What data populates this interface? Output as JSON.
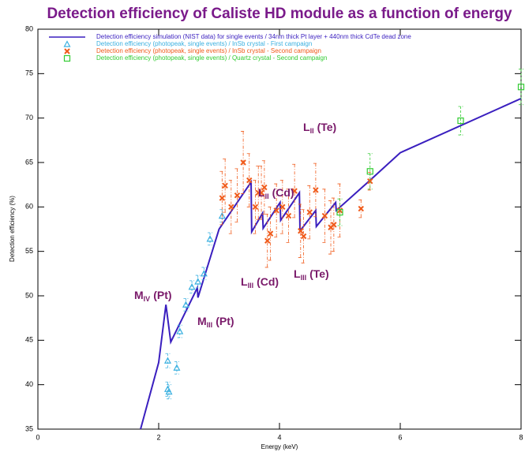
{
  "chart_data": {
    "type": "line",
    "title": "Detection efficiency of Caliste HD module as a function of energy",
    "x_label": "Energy (keV)",
    "y_label": "Detection efficiency (%)",
    "xlim": [
      0,
      8
    ],
    "xticks": [
      0,
      2,
      4,
      6,
      8
    ],
    "ylim": [
      35,
      80
    ],
    "yticks": [
      35,
      40,
      45,
      50,
      55,
      60,
      65,
      70,
      75,
      80
    ],
    "series": [
      {
        "name": "Detection efficiency simulation (NIST data) for single events / 34nm thick Pt layer + 440nm thick CdTe dead zone",
        "type": "line",
        "color": "#3a1fbf",
        "x": [
          1.7,
          2.0,
          2.12,
          2.2,
          2.64,
          2.65,
          3.0,
          3.05,
          3.53,
          3.54,
          3.72,
          3.73,
          4.01,
          4.02,
          4.33,
          4.34,
          4.6,
          4.61,
          4.93,
          4.94,
          5.5,
          6.0,
          8.0
        ],
        "values": [
          35,
          42.5,
          49.0,
          44.8,
          50.9,
          49.8,
          57.5,
          58.0,
          62.8,
          57.2,
          59.3,
          57.6,
          60.5,
          58.5,
          61.6,
          57.3,
          59.6,
          57.8,
          60.5,
          59.6,
          63.0,
          66.1,
          72.2
        ]
      },
      {
        "name": "Detection efficiency (photopeak, single events) / InSb crystal - First campaign",
        "type": "triangle",
        "color": "#3ab0e0",
        "x": [
          2.15,
          2.15,
          2.17,
          2.3,
          2.35,
          2.45,
          2.55,
          2.65,
          2.75,
          2.85,
          3.05
        ],
        "values": [
          42.7,
          39.5,
          39.2,
          41.9,
          46.0,
          49.0,
          51.0,
          51.6,
          52.5,
          56.4,
          59.0
        ],
        "errors": [
          0.8,
          0.8,
          0.8,
          0.7,
          0.7,
          0.7,
          0.7,
          0.7,
          0.7,
          0.7,
          0.7
        ]
      },
      {
        "name": "Detection efficiency (photopeak, single events) / InSb crystal - Second campaign",
        "type": "cross",
        "color": "#f05a1a",
        "x": [
          3.05,
          3.1,
          3.2,
          3.3,
          3.4,
          3.5,
          3.6,
          3.65,
          3.7,
          3.75,
          3.8,
          3.85,
          3.95,
          4.05,
          4.15,
          4.25,
          4.35,
          4.4,
          4.5,
          4.6,
          4.75,
          4.85,
          4.9,
          5.0,
          5.35,
          5.5
        ],
        "values": [
          61.0,
          62.4,
          60.0,
          61.3,
          65.0,
          63.0,
          60.0,
          61.6,
          61.6,
          62.2,
          56.2,
          57.0,
          59.6,
          60.0,
          59.0,
          61.8,
          57.3,
          56.7,
          59.4,
          61.9,
          59.0,
          57.7,
          58.0,
          59.6,
          59.8,
          62.9
        ],
        "errors": [
          3,
          3,
          3,
          3,
          3.5,
          3,
          3,
          3,
          3,
          3,
          3,
          3,
          3,
          3,
          3,
          3,
          3,
          3,
          3,
          3,
          3,
          3,
          3,
          3,
          1,
          1
        ]
      },
      {
        "name": "Detection efficiency (photopeak, single events) / Quartz crystal - Second campaign",
        "type": "square",
        "color": "#33cc33",
        "x": [
          5.0,
          5.5,
          7.0,
          8.0
        ],
        "values": [
          59.4,
          64.0,
          69.7,
          73.5
        ],
        "errors": [
          1.5,
          2.0,
          1.6,
          2.0
        ]
      }
    ],
    "annotations": [
      {
        "main": "M",
        "sub": "IV",
        "suffix": "(Pt)"
      },
      {
        "main": "M",
        "sub": "III",
        "suffix": "(Pt)"
      },
      {
        "main": "L",
        "sub": "II",
        "suffix": "(Cd)"
      },
      {
        "main": "L",
        "sub": "III",
        "suffix": "(Cd)"
      },
      {
        "main": "L",
        "sub": "II",
        "suffix": "(Te)"
      },
      {
        "main": "L",
        "sub": "III",
        "suffix": "(Te)"
      }
    ]
  }
}
